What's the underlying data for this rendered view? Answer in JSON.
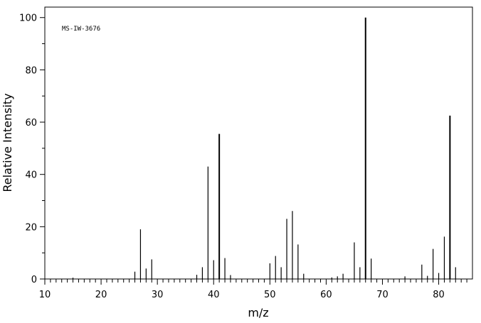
{
  "chart_data": {
    "type": "bar",
    "xlabel": "m/z",
    "ylabel": "Relative Intensity",
    "annotation": "MS-IW-3676",
    "xlim": [
      10,
      86
    ],
    "ylim": [
      0,
      104
    ],
    "x_ticks": [
      10,
      20,
      30,
      40,
      50,
      60,
      70,
      80
    ],
    "y_ticks": [
      0,
      20,
      40,
      60,
      80,
      100
    ],
    "grid": false,
    "peaks": [
      {
        "x": 15,
        "y": 0.5
      },
      {
        "x": 26,
        "y": 2.8
      },
      {
        "x": 27,
        "y": 19
      },
      {
        "x": 28,
        "y": 4
      },
      {
        "x": 29,
        "y": 7.5
      },
      {
        "x": 37,
        "y": 1.6
      },
      {
        "x": 38,
        "y": 4.5
      },
      {
        "x": 39,
        "y": 43
      },
      {
        "x": 40,
        "y": 7.2
      },
      {
        "x": 41,
        "y": 55.5
      },
      {
        "x": 42,
        "y": 8
      },
      {
        "x": 43,
        "y": 1.5
      },
      {
        "x": 50,
        "y": 6
      },
      {
        "x": 51,
        "y": 8.8
      },
      {
        "x": 52,
        "y": 4.5
      },
      {
        "x": 53,
        "y": 23
      },
      {
        "x": 54,
        "y": 26
      },
      {
        "x": 55,
        "y": 13.2
      },
      {
        "x": 56,
        "y": 2
      },
      {
        "x": 61,
        "y": 0.6
      },
      {
        "x": 62,
        "y": 1
      },
      {
        "x": 63,
        "y": 2
      },
      {
        "x": 65,
        "y": 14
      },
      {
        "x": 66,
        "y": 4.5
      },
      {
        "x": 67,
        "y": 100
      },
      {
        "x": 68,
        "y": 7.8
      },
      {
        "x": 74,
        "y": 1
      },
      {
        "x": 77,
        "y": 5.5
      },
      {
        "x": 78,
        "y": 1.2
      },
      {
        "x": 79,
        "y": 11.5
      },
      {
        "x": 80,
        "y": 2.3
      },
      {
        "x": 81,
        "y": 16.2
      },
      {
        "x": 82,
        "y": 62.5
      },
      {
        "x": 83,
        "y": 4.5
      }
    ]
  }
}
